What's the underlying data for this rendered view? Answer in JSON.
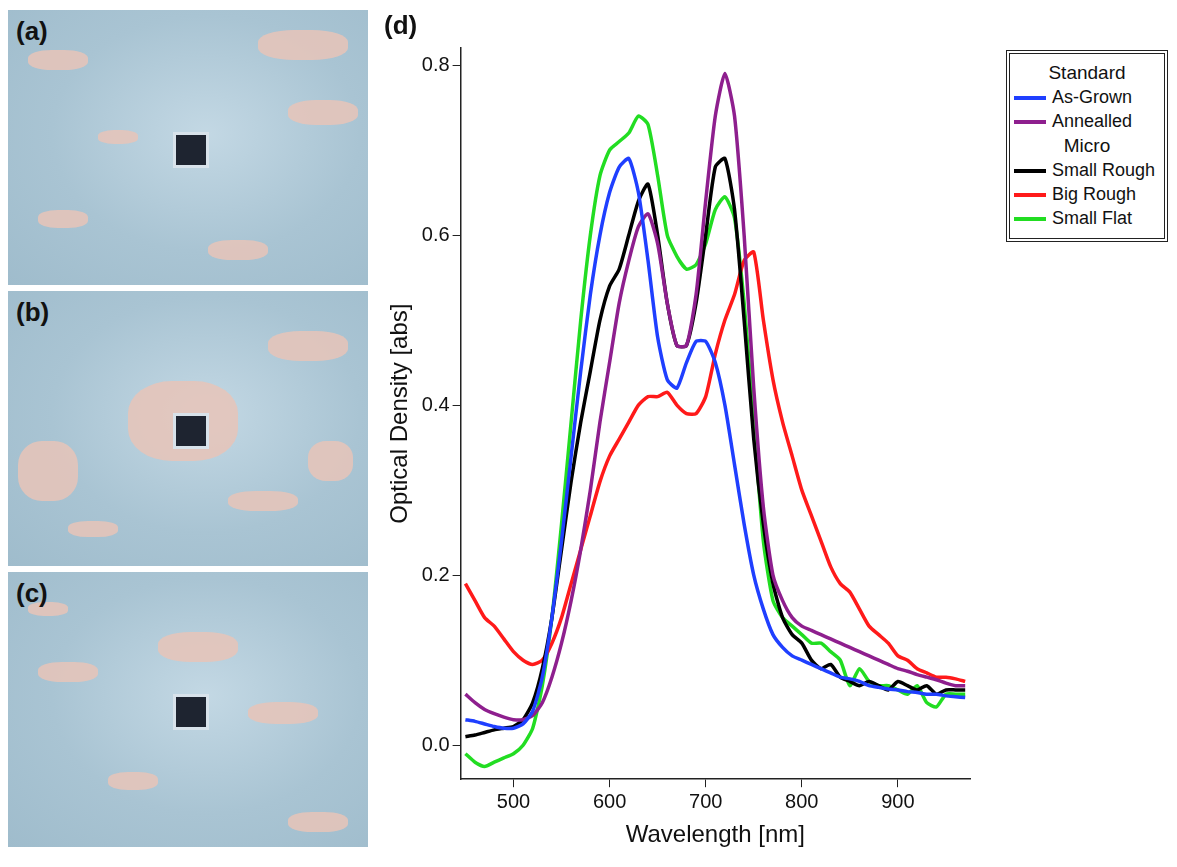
{
  "panel_labels": [
    "(a)",
    "(b)",
    "(c)",
    "(d)"
  ],
  "chart_data": {
    "type": "line",
    "x_label": "Wavelength [nm]",
    "y_label": "Optical Density [abs]",
    "xlim": [
      445,
      975
    ],
    "xticks": [
      500,
      600,
      700,
      800,
      900
    ],
    "ylim": [
      -0.04,
      0.82
    ],
    "yticks": [
      {
        "value": 0,
        "label": "0.0"
      },
      0.2,
      0.4,
      0.6,
      0.8
    ],
    "grid": false,
    "legend": "right",
    "legend_groups": [
      {
        "title": "Standard",
        "series": [
          "As-Grown",
          "Annealled"
        ]
      },
      {
        "title": "Micro",
        "series": [
          "Small Rough",
          "Big Rough",
          "Small Flat"
        ]
      }
    ],
    "x": [
      450,
      460,
      470,
      480,
      490,
      500,
      510,
      520,
      530,
      540,
      550,
      560,
      570,
      580,
      590,
      600,
      610,
      620,
      630,
      640,
      650,
      660,
      670,
      680,
      690,
      700,
      710,
      720,
      730,
      740,
      750,
      760,
      770,
      780,
      790,
      800,
      810,
      820,
      830,
      840,
      850,
      860,
      870,
      880,
      890,
      900,
      910,
      920,
      930,
      940,
      950,
      960,
      970
    ],
    "series": [
      {
        "name": "As-Grown",
        "color": "#1f3fff",
        "values": [
          0.03,
          0.028,
          0.025,
          0.022,
          0.02,
          0.02,
          0.025,
          0.04,
          0.08,
          0.15,
          0.24,
          0.34,
          0.44,
          0.53,
          0.6,
          0.65,
          0.68,
          0.69,
          0.65,
          0.57,
          0.48,
          0.43,
          0.42,
          0.45,
          0.475,
          0.475,
          0.45,
          0.4,
          0.33,
          0.26,
          0.2,
          0.16,
          0.13,
          0.115,
          0.105,
          0.1,
          0.095,
          0.09,
          0.085,
          0.08,
          0.078,
          0.075,
          0.07,
          0.068,
          0.066,
          0.065,
          0.063,
          0.062,
          0.06,
          0.06,
          0.058,
          0.057,
          0.056
        ]
      },
      {
        "name": "Annealled",
        "color": "#8e1f8e",
        "values": [
          0.06,
          0.05,
          0.042,
          0.037,
          0.033,
          0.03,
          0.03,
          0.035,
          0.05,
          0.08,
          0.12,
          0.17,
          0.23,
          0.3,
          0.38,
          0.45,
          0.52,
          0.57,
          0.61,
          0.625,
          0.59,
          0.52,
          0.47,
          0.47,
          0.53,
          0.64,
          0.74,
          0.79,
          0.74,
          0.6,
          0.42,
          0.28,
          0.2,
          0.17,
          0.15,
          0.14,
          0.135,
          0.13,
          0.125,
          0.12,
          0.115,
          0.11,
          0.105,
          0.1,
          0.095,
          0.09,
          0.087,
          0.083,
          0.08,
          0.077,
          0.073,
          0.07,
          0.07
        ]
      },
      {
        "name": "Small Rough",
        "color": "#000000",
        "values": [
          0.01,
          0.012,
          0.015,
          0.018,
          0.02,
          0.022,
          0.03,
          0.05,
          0.09,
          0.15,
          0.23,
          0.31,
          0.38,
          0.44,
          0.5,
          0.54,
          0.56,
          0.6,
          0.64,
          0.66,
          0.6,
          0.52,
          0.47,
          0.47,
          0.52,
          0.6,
          0.68,
          0.69,
          0.63,
          0.5,
          0.36,
          0.26,
          0.19,
          0.15,
          0.13,
          0.12,
          0.1,
          0.09,
          0.095,
          0.08,
          0.075,
          0.07,
          0.075,
          0.07,
          0.065,
          0.075,
          0.07,
          0.065,
          0.07,
          0.06,
          0.065,
          0.065,
          0.065
        ]
      },
      {
        "name": "Big Rough",
        "color": "#ff1a1a",
        "values": [
          0.19,
          0.17,
          0.15,
          0.14,
          0.125,
          0.11,
          0.1,
          0.095,
          0.1,
          0.12,
          0.15,
          0.19,
          0.23,
          0.27,
          0.31,
          0.34,
          0.36,
          0.38,
          0.4,
          0.41,
          0.41,
          0.415,
          0.4,
          0.39,
          0.39,
          0.41,
          0.46,
          0.5,
          0.53,
          0.57,
          0.58,
          0.5,
          0.43,
          0.38,
          0.34,
          0.3,
          0.27,
          0.24,
          0.21,
          0.19,
          0.18,
          0.16,
          0.14,
          0.13,
          0.12,
          0.105,
          0.1,
          0.09,
          0.085,
          0.08,
          0.08,
          0.078,
          0.075
        ]
      },
      {
        "name": "Small Flat",
        "color": "#22dd22",
        "values": [
          -0.01,
          -0.02,
          -0.025,
          -0.02,
          -0.015,
          -0.01,
          0,
          0.02,
          0.07,
          0.15,
          0.26,
          0.38,
          0.5,
          0.6,
          0.67,
          0.7,
          0.71,
          0.72,
          0.74,
          0.73,
          0.67,
          0.6,
          0.575,
          0.56,
          0.565,
          0.59,
          0.63,
          0.645,
          0.62,
          0.52,
          0.38,
          0.24,
          0.17,
          0.15,
          0.14,
          0.13,
          0.12,
          0.12,
          0.11,
          0.1,
          0.07,
          0.09,
          0.075,
          0.07,
          0.07,
          0.065,
          0.06,
          0.07,
          0.05,
          0.045,
          0.06,
          0.06,
          0.06
        ]
      }
    ]
  }
}
